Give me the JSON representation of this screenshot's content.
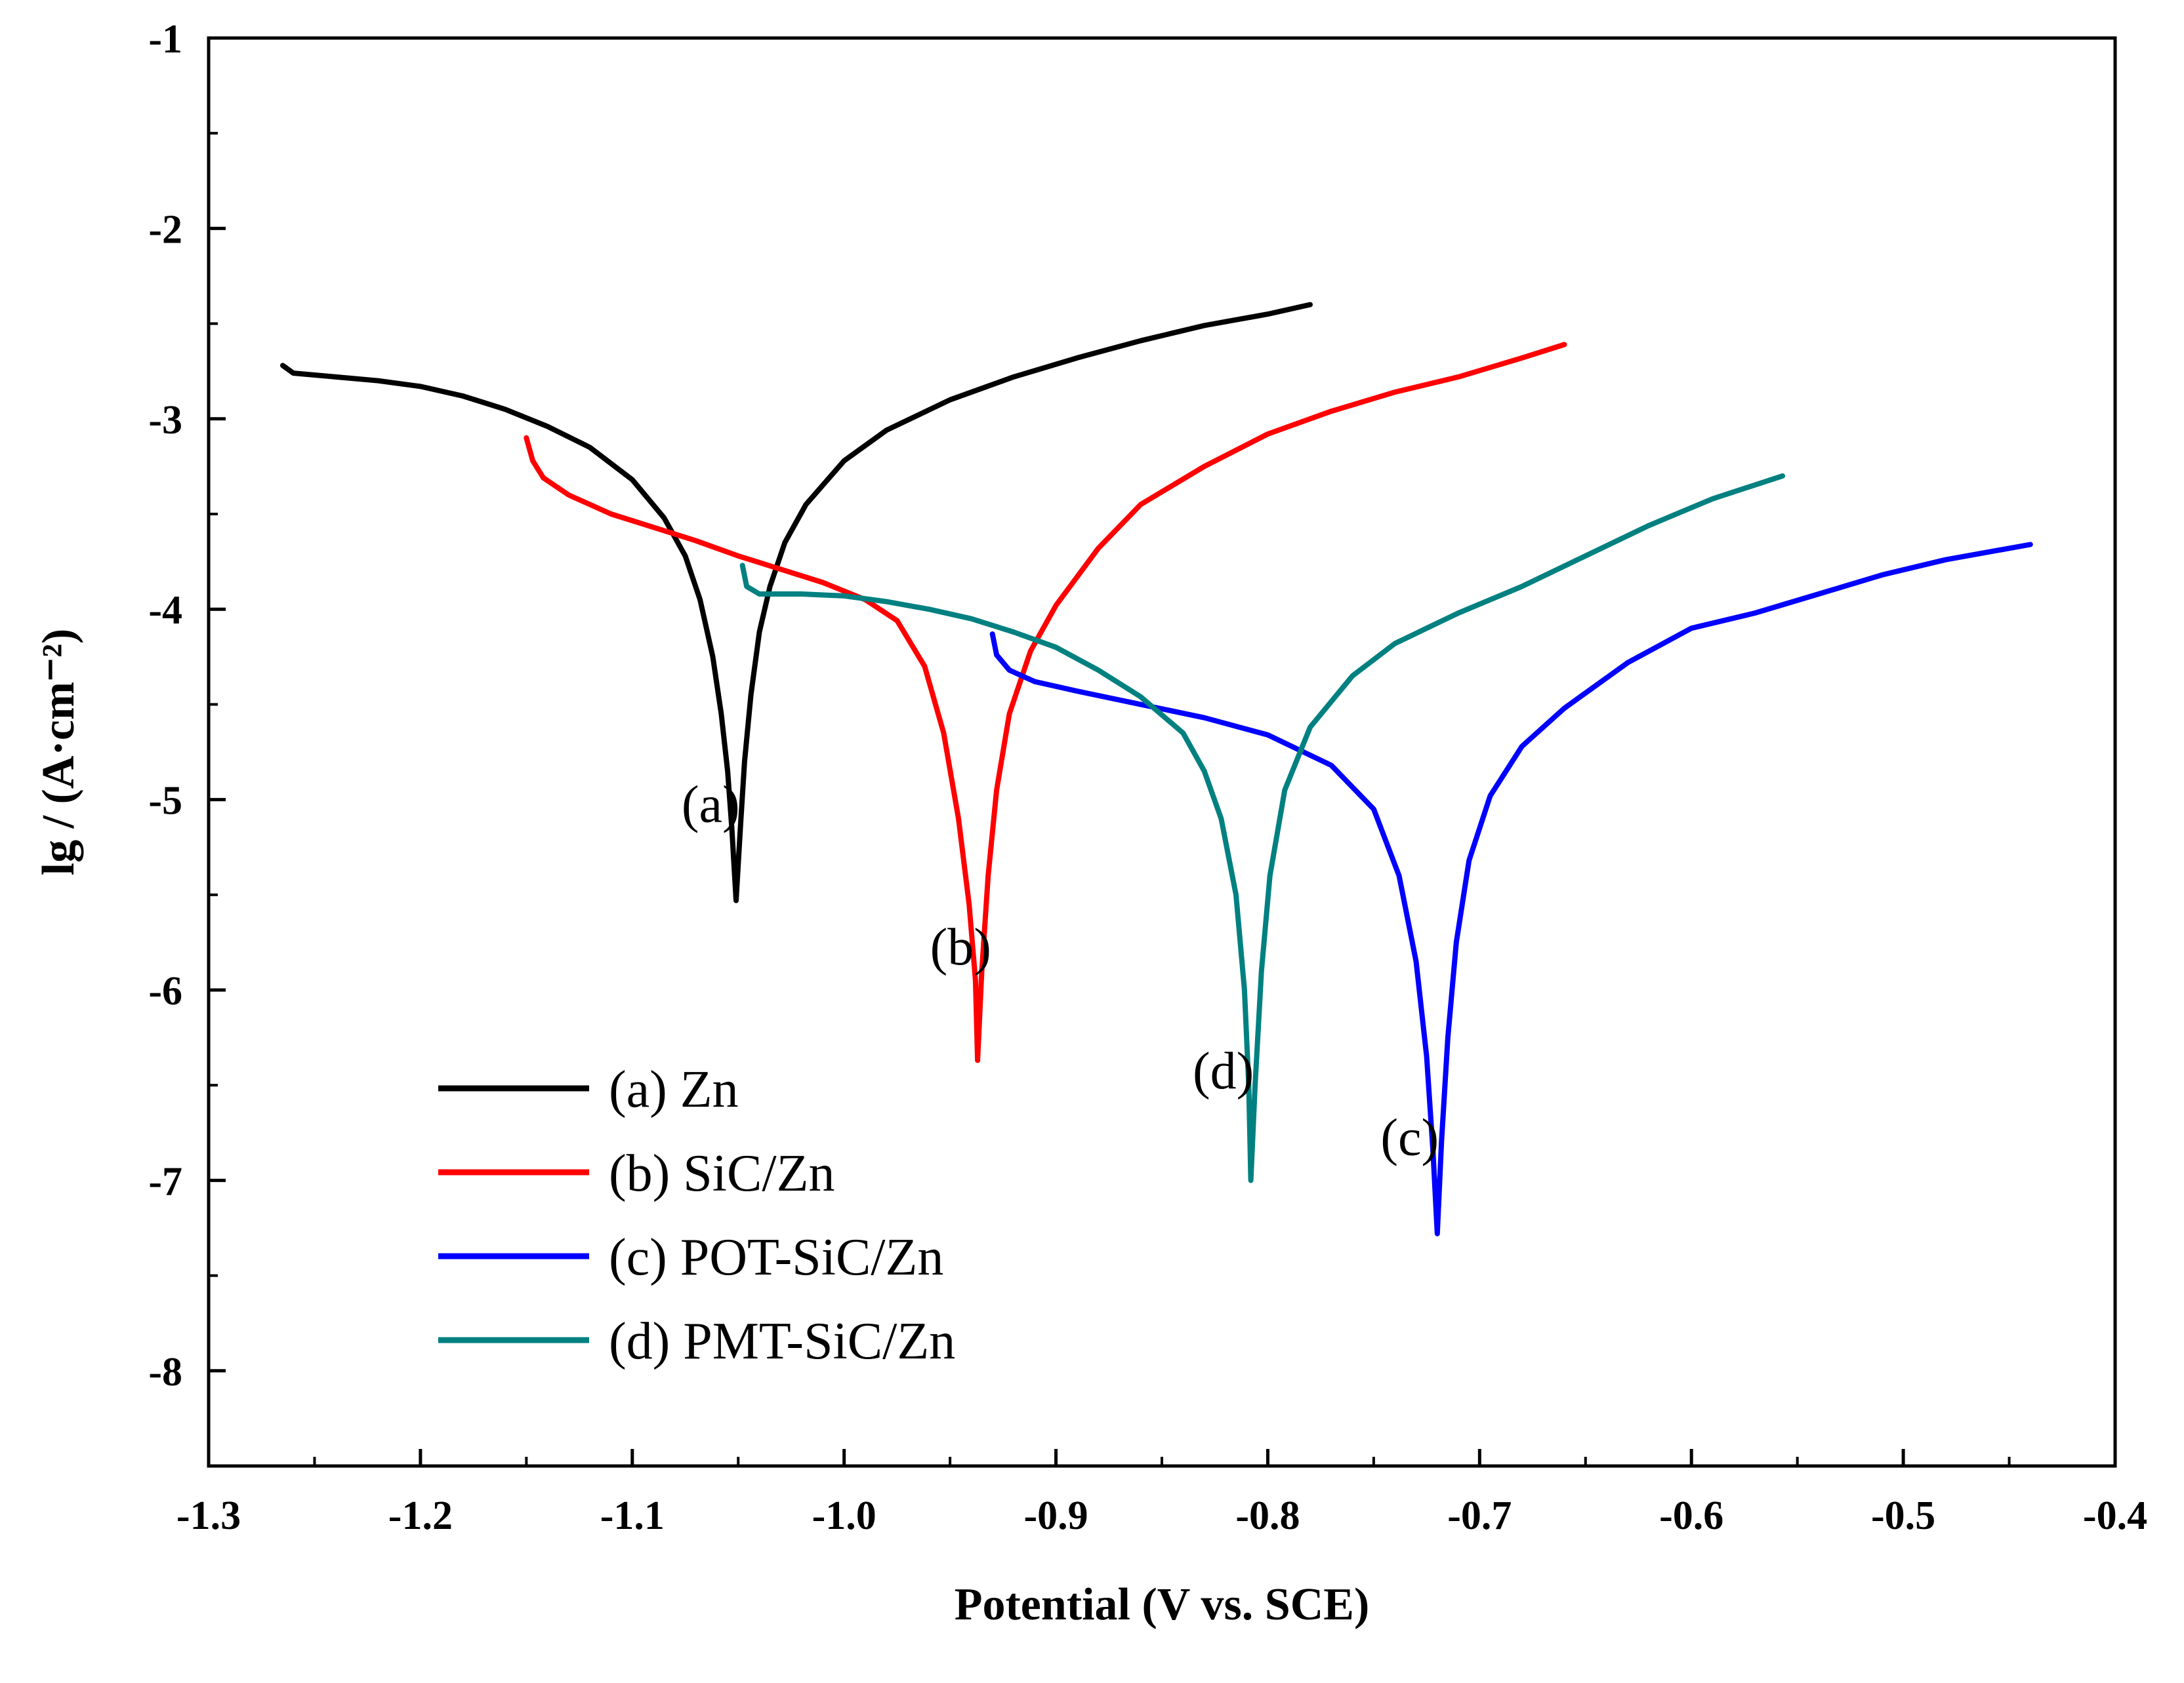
{
  "chart_data": {
    "type": "line",
    "title": "",
    "xlabel": "Potential (V vs. SCE)",
    "ylabel": "lg / (A·cm⁻²)",
    "xlim": [
      -1.3,
      -0.4
    ],
    "ylim": [
      -8.5,
      -1
    ],
    "xticks": [
      -1.3,
      -1.2,
      -1.1,
      -1.0,
      -0.9,
      -0.8,
      -0.7,
      -0.6,
      -0.5,
      -0.4
    ],
    "xtick_labels": [
      "-1.3",
      "-1.2",
      "-1.1",
      "-1.0",
      "-0.9",
      "-0.8",
      "-0.7",
      "-0.6",
      "-0.5",
      "-0.4"
    ],
    "yticks": [
      -1,
      -2,
      -3,
      -4,
      -5,
      -6,
      -7,
      -8
    ],
    "ytick_labels": [
      "-1",
      "-2",
      "-3",
      "-4",
      "-5",
      "-6",
      "-7",
      "-8"
    ],
    "legend_position": "bottom-left",
    "series": [
      {
        "name": "(a) Zn",
        "color": "#000000",
        "annotation": "(a)",
        "annotation_at": [
          -1.063,
          -5.02
        ],
        "points": [
          [
            -1.265,
            -2.72
          ],
          [
            -1.26,
            -2.76
          ],
          [
            -1.24,
            -2.78
          ],
          [
            -1.22,
            -2.8
          ],
          [
            -1.2,
            -2.83
          ],
          [
            -1.18,
            -2.88
          ],
          [
            -1.16,
            -2.95
          ],
          [
            -1.14,
            -3.04
          ],
          [
            -1.12,
            -3.15
          ],
          [
            -1.1,
            -3.32
          ],
          [
            -1.085,
            -3.52
          ],
          [
            -1.075,
            -3.72
          ],
          [
            -1.068,
            -3.95
          ],
          [
            -1.062,
            -4.25
          ],
          [
            -1.058,
            -4.55
          ],
          [
            -1.055,
            -4.85
          ],
          [
            -1.053,
            -5.15
          ],
          [
            -1.051,
            -5.53
          ],
          [
            -1.049,
            -5.15
          ],
          [
            -1.047,
            -4.8
          ],
          [
            -1.044,
            -4.45
          ],
          [
            -1.04,
            -4.12
          ],
          [
            -1.035,
            -3.88
          ],
          [
            -1.028,
            -3.65
          ],
          [
            -1.018,
            -3.45
          ],
          [
            -1.0,
            -3.22
          ],
          [
            -0.98,
            -3.06
          ],
          [
            -0.95,
            -2.9
          ],
          [
            -0.92,
            -2.78
          ],
          [
            -0.89,
            -2.68
          ],
          [
            -0.86,
            -2.59
          ],
          [
            -0.83,
            -2.51
          ],
          [
            -0.8,
            -2.45
          ],
          [
            -0.78,
            -2.4
          ]
        ]
      },
      {
        "name": "(b) SiC/Zn",
        "color": "#ff0000",
        "annotation": "(b)",
        "annotation_at": [
          -0.945,
          -5.77
        ],
        "points": [
          [
            -1.15,
            -3.1
          ],
          [
            -1.147,
            -3.22
          ],
          [
            -1.142,
            -3.31
          ],
          [
            -1.13,
            -3.4
          ],
          [
            -1.11,
            -3.5
          ],
          [
            -1.09,
            -3.57
          ],
          [
            -1.07,
            -3.64
          ],
          [
            -1.05,
            -3.72
          ],
          [
            -1.03,
            -3.79
          ],
          [
            -1.01,
            -3.86
          ],
          [
            -0.99,
            -3.95
          ],
          [
            -0.975,
            -4.06
          ],
          [
            -0.962,
            -4.3
          ],
          [
            -0.953,
            -4.65
          ],
          [
            -0.946,
            -5.1
          ],
          [
            -0.941,
            -5.55
          ],
          [
            -0.938,
            -5.95
          ],
          [
            -0.937,
            -6.37
          ],
          [
            -0.935,
            -5.9
          ],
          [
            -0.932,
            -5.4
          ],
          [
            -0.928,
            -4.95
          ],
          [
            -0.922,
            -4.55
          ],
          [
            -0.912,
            -4.22
          ],
          [
            -0.9,
            -3.98
          ],
          [
            -0.88,
            -3.68
          ],
          [
            -0.86,
            -3.45
          ],
          [
            -0.83,
            -3.25
          ],
          [
            -0.8,
            -3.08
          ],
          [
            -0.77,
            -2.96
          ],
          [
            -0.74,
            -2.86
          ],
          [
            -0.71,
            -2.78
          ],
          [
            -0.68,
            -2.68
          ],
          [
            -0.66,
            -2.61
          ]
        ]
      },
      {
        "name": "(c) POT-SiC/Zn",
        "color": "#0000ff",
        "annotation": "(c)",
        "annotation_at": [
          -0.733,
          -6.77
        ],
        "points": [
          [
            -0.93,
            -4.13
          ],
          [
            -0.928,
            -4.24
          ],
          [
            -0.922,
            -4.32
          ],
          [
            -0.91,
            -4.38
          ],
          [
            -0.89,
            -4.43
          ],
          [
            -0.86,
            -4.5
          ],
          [
            -0.83,
            -4.57
          ],
          [
            -0.8,
            -4.66
          ],
          [
            -0.77,
            -4.82
          ],
          [
            -0.75,
            -5.05
          ],
          [
            -0.738,
            -5.4
          ],
          [
            -0.73,
            -5.85
          ],
          [
            -0.725,
            -6.35
          ],
          [
            -0.722,
            -6.85
          ],
          [
            -0.72,
            -7.28
          ],
          [
            -0.718,
            -6.8
          ],
          [
            -0.715,
            -6.25
          ],
          [
            -0.711,
            -5.75
          ],
          [
            -0.705,
            -5.32
          ],
          [
            -0.695,
            -4.98
          ],
          [
            -0.68,
            -4.72
          ],
          [
            -0.66,
            -4.52
          ],
          [
            -0.63,
            -4.28
          ],
          [
            -0.6,
            -4.1
          ],
          [
            -0.57,
            -4.02
          ],
          [
            -0.54,
            -3.92
          ],
          [
            -0.51,
            -3.82
          ],
          [
            -0.48,
            -3.74
          ],
          [
            -0.44,
            -3.66
          ]
        ]
      },
      {
        "name": "(d) PMT-SiC/Zn",
        "color": "#008080",
        "annotation": "(d)",
        "annotation_at": [
          -0.821,
          -6.42
        ],
        "points": [
          [
            -1.048,
            -3.77
          ],
          [
            -1.046,
            -3.88
          ],
          [
            -1.04,
            -3.92
          ],
          [
            -1.02,
            -3.92
          ],
          [
            -1.0,
            -3.93
          ],
          [
            -0.98,
            -3.96
          ],
          [
            -0.96,
            -4.0
          ],
          [
            -0.94,
            -4.05
          ],
          [
            -0.92,
            -4.12
          ],
          [
            -0.9,
            -4.2
          ],
          [
            -0.88,
            -4.32
          ],
          [
            -0.86,
            -4.46
          ],
          [
            -0.84,
            -4.65
          ],
          [
            -0.83,
            -4.85
          ],
          [
            -0.822,
            -5.1
          ],
          [
            -0.815,
            -5.5
          ],
          [
            -0.811,
            -6.0
          ],
          [
            -0.809,
            -6.5
          ],
          [
            -0.808,
            -7.0
          ],
          [
            -0.806,
            -6.5
          ],
          [
            -0.803,
            -5.9
          ],
          [
            -0.799,
            -5.4
          ],
          [
            -0.792,
            -4.95
          ],
          [
            -0.78,
            -4.62
          ],
          [
            -0.76,
            -4.35
          ],
          [
            -0.74,
            -4.18
          ],
          [
            -0.71,
            -4.02
          ],
          [
            -0.68,
            -3.88
          ],
          [
            -0.65,
            -3.72
          ],
          [
            -0.62,
            -3.56
          ],
          [
            -0.59,
            -3.42
          ],
          [
            -0.557,
            -3.3
          ]
        ]
      }
    ]
  }
}
